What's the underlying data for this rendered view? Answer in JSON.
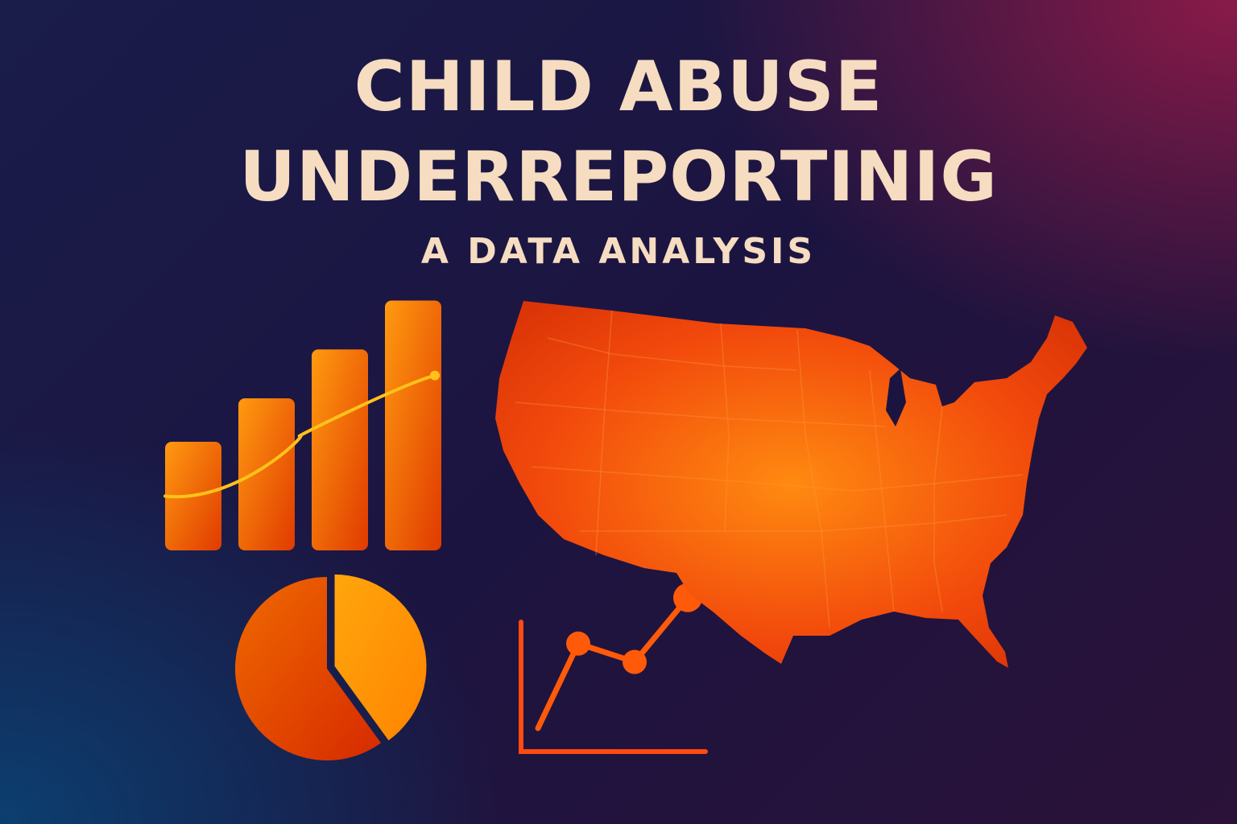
{
  "header": {
    "title_line_1": "CHILD ABUSE",
    "title_line_2": "UNDERREPORTINIG",
    "subtitle": "A DATA ANALYSIS"
  },
  "colors": {
    "title_text": "#f6dcc0",
    "accent_orange": "#ff8a00",
    "accent_red": "#e03a00",
    "trend_line": "#ffc21a"
  },
  "graphics": {
    "bar_chart": {
      "values": [
        1,
        1.4,
        1.85,
        2.3
      ],
      "trend": true
    },
    "pie_chart": {
      "slices": [
        0.6,
        0.4
      ]
    },
    "line_chart": {
      "values": [
        2,
        2.6,
        2.2,
        3.6
      ]
    },
    "map": {
      "name": "united-states-map-icon"
    }
  }
}
